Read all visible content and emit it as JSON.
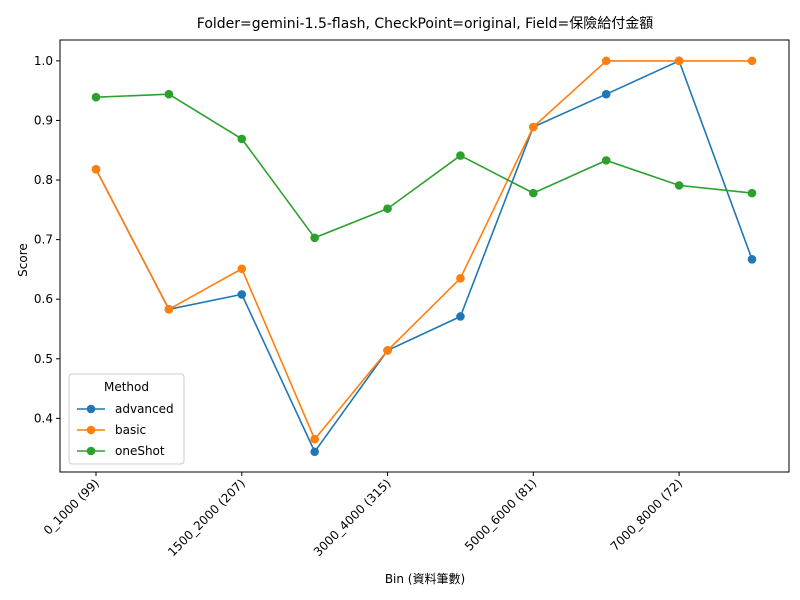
{
  "chart_data": {
    "type": "line",
    "title": "Folder=gemini-1.5-flash, CheckPoint=original, Field=保險給付金額",
    "xlabel": "Bin (資料筆數)",
    "ylabel": "Score",
    "x_tick_labels": [
      "0_1000 (99)",
      "1500_2000 (207)",
      "3000_4000 (315)",
      "5000_6000 (81)",
      "7000_8000 (72)"
    ],
    "x_tick_positions": [
      0,
      2,
      4,
      6,
      8
    ],
    "num_bins": 10,
    "ylim": [
      0.31,
      1.035
    ],
    "y_ticks": [
      0.4,
      0.5,
      0.6,
      0.7,
      0.8,
      0.9,
      1.0
    ],
    "legend": {
      "title": "Method",
      "position": "lower-left"
    },
    "series": [
      {
        "name": "advanced",
        "color": "#1f77b4",
        "values": [
          0.818,
          0.583,
          0.608,
          0.344,
          0.514,
          0.571,
          0.889,
          0.944,
          1.0,
          0.667
        ]
      },
      {
        "name": "basic",
        "color": "#ff7f0e",
        "values": [
          0.818,
          0.583,
          0.651,
          0.365,
          0.514,
          0.635,
          0.889,
          1.0,
          1.0,
          1.0
        ]
      },
      {
        "name": "oneShot",
        "color": "#2ca02c",
        "values": [
          0.939,
          0.944,
          0.869,
          0.703,
          0.752,
          0.841,
          0.778,
          0.833,
          0.791,
          0.778
        ]
      }
    ]
  }
}
